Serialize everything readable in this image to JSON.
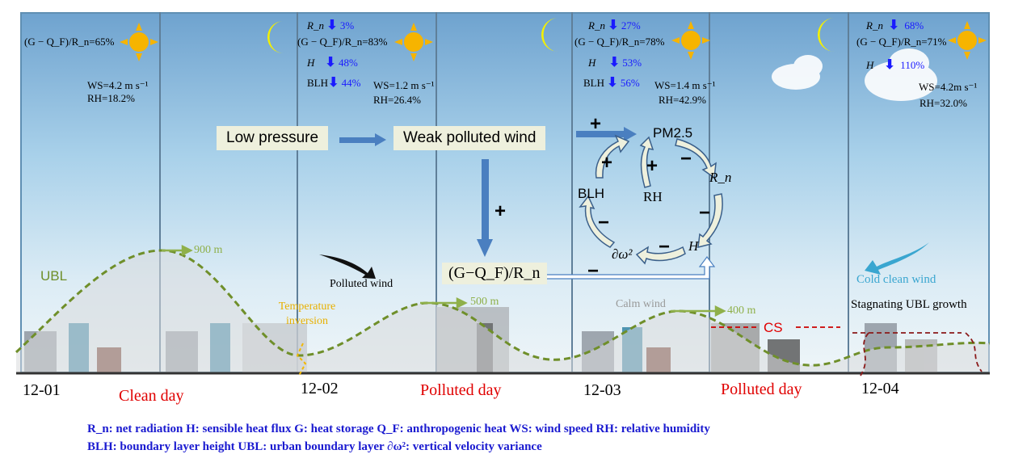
{
  "panels": [
    {
      "ratio": "(G − Q_F)/R_n=65%",
      "ws": "WS=4.2 m s⁻¹",
      "rh": "RH=18.2%"
    },
    {
      "rn": "R_n",
      "rn_change": "3%",
      "ratio": "(G − Q_F)/R_n=83%",
      "h": "H",
      "h_change": "48%",
      "blh": "BLH",
      "blh_change": "44%",
      "ws": "WS=1.2 m s⁻¹",
      "rh": "RH=26.4%"
    },
    {
      "rn": "R_n",
      "rn_change": "27%",
      "ratio": "(G − Q_F)/R_n=78%",
      "h": "H",
      "h_change": "53%",
      "blh": "BLH",
      "blh_change": "56%",
      "ws": "WS=1.4 m s⁻¹",
      "rh": "RH=42.9%"
    },
    {
      "rn": "R_n",
      "rn_change": "68%",
      "ratio": "(G − Q_F)/R_n=71%",
      "h": "H",
      "h_change": "110%",
      "ws": "WS=4.2m s⁻¹",
      "rh": "RH=32.0%"
    }
  ],
  "flow": {
    "low_pressure": "Low pressure",
    "weak_wind": "Weak polluted wind",
    "plus": "+",
    "ratio_box": "(G−Q_F)/R_n",
    "minus": "−"
  },
  "loop": {
    "pm": "PM2.5",
    "rn": "R_n",
    "h": "H",
    "dw": "∂ω²",
    "blh": "BLH",
    "rh": "RH",
    "signs": [
      "+",
      "+",
      "+",
      "−",
      "−",
      "−",
      "−"
    ]
  },
  "annotations": {
    "ubl": "UBL",
    "h900": "900 m",
    "h500": "500 m",
    "h400": "400 m",
    "polluted_wind": "Polluted wind",
    "inversion": "Temperature inversion",
    "calm_wind": "Calm wind",
    "cold_wind": "Cold clean wind",
    "stagnating": "Stagnating UBL growth",
    "cs": "CS"
  },
  "timeline": {
    "dates": [
      "12-01",
      "12-02",
      "12-03",
      "12-04"
    ],
    "days": [
      "Clean day",
      "Polluted day",
      "Polluted day"
    ]
  },
  "legend": {
    "line1": "R_n:  net radiation   H: sensible heat flux   G:  heat storage   Q_F: anthropogenic heat   WS:  wind speed   RH:  relative humidity",
    "line2": "BLH: boundary layer height   UBL:  urban boundary layer    ∂ω²: vertical velocity variance"
  },
  "colors": {
    "ubl": "#6f8f2a",
    "day": "#e00000",
    "legend": "#1a1ad0",
    "change": "#1a1aff",
    "flow_arrow": "#4a7fc0"
  }
}
